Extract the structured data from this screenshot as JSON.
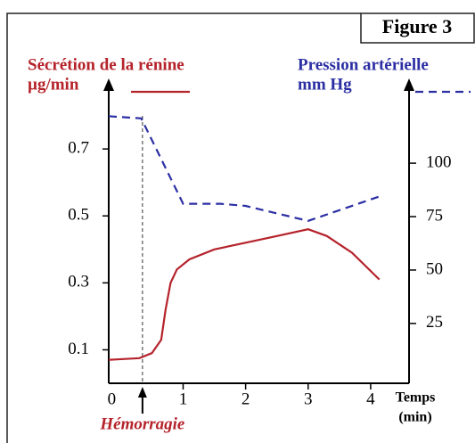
{
  "chart_data": {
    "type": "line",
    "title": "Figure 3",
    "ylabel": "Sécrétion de la rénine",
    "yunit": "µg/min",
    "y2label": "Pression artérielle",
    "y2unit": "mm Hg",
    "xlabel": "Temps",
    "xunit": "(min)",
    "annotation": {
      "text": "Hémorragie",
      "x": 0.35
    },
    "xlim": [
      -0.19,
      4.6
    ],
    "xticks": [
      0,
      1,
      2,
      3,
      4
    ],
    "ylim": [
      0,
      0.9
    ],
    "yticks": [
      0.1,
      0.3,
      0.5,
      0.7
    ],
    "y2lim": [
      -3,
      138
    ],
    "y2ticks": [
      25,
      50,
      75,
      100
    ],
    "series": [
      {
        "name": "Sécrétion de la rénine",
        "color": "#b5232b",
        "dash": false,
        "x": [
          -0.19,
          0.3,
          0.5,
          0.65,
          0.72,
          0.8,
          0.9,
          1.1,
          1.5,
          2,
          2.5,
          3,
          3.3,
          3.7,
          4.14
        ],
        "values": [
          0.07,
          0.075,
          0.09,
          0.13,
          0.22,
          0.3,
          0.34,
          0.37,
          0.4,
          0.42,
          0.44,
          0.46,
          0.44,
          0.39,
          0.31
        ]
      },
      {
        "name": "Pression artérielle",
        "color": "#2b2fa3",
        "dash": true,
        "axis": "y2",
        "x": [
          -0.19,
          0.33,
          1.0,
          1.6,
          2.0,
          3.0,
          4.2
        ],
        "values": [
          122,
          121,
          81,
          81,
          80,
          73,
          85
        ]
      }
    ]
  }
}
